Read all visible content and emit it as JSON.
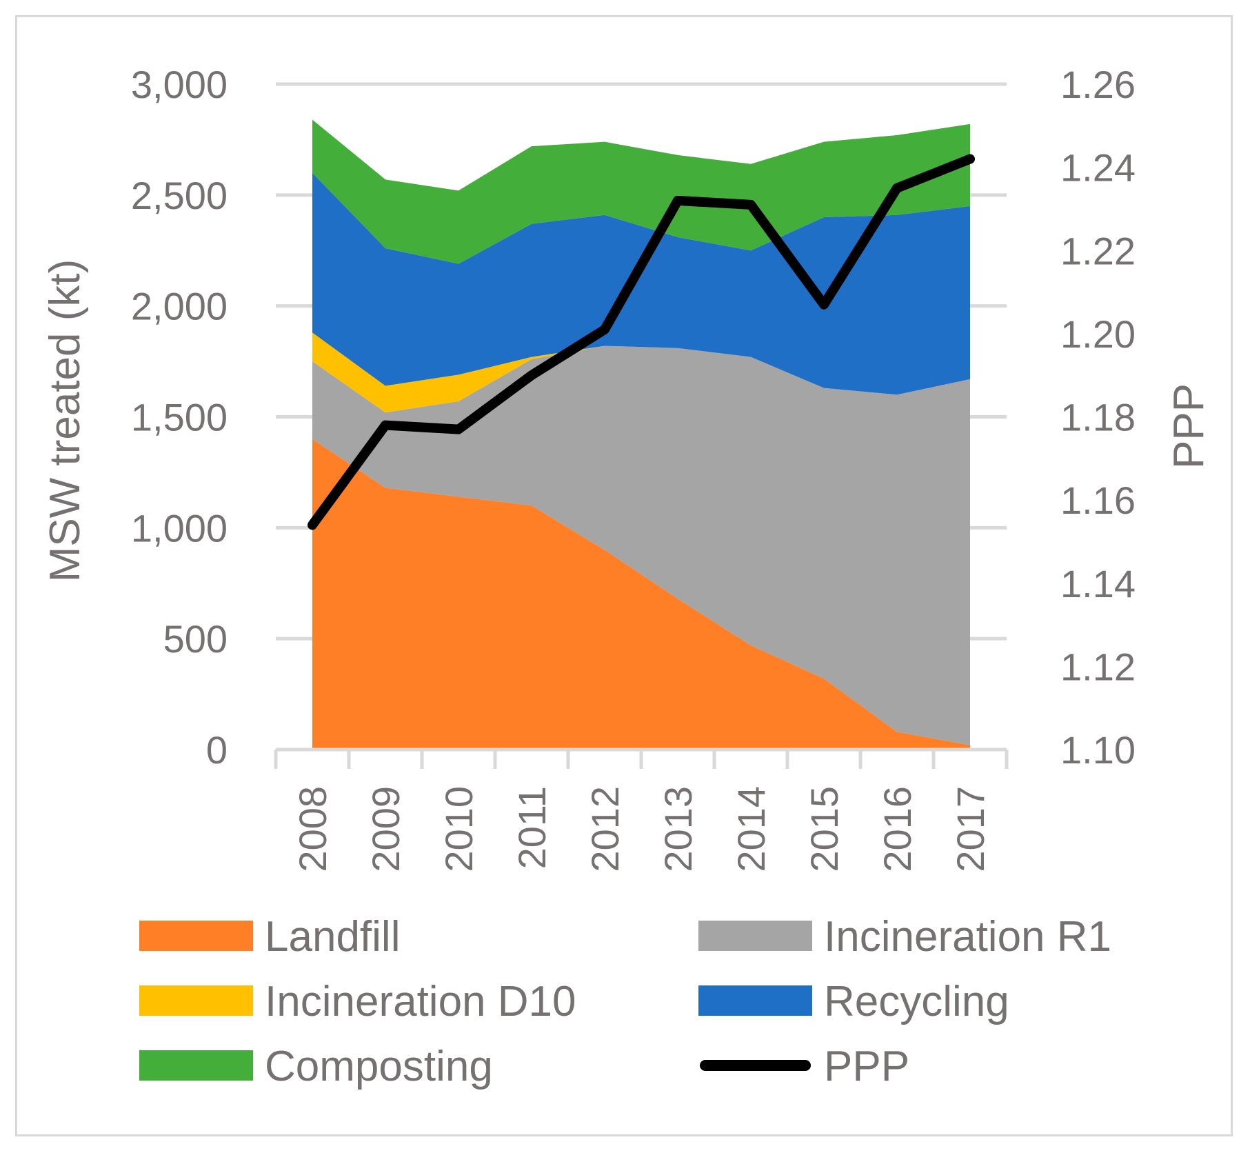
{
  "chart_data": {
    "type": "area",
    "stacked": true,
    "categories": [
      "2008",
      "2009",
      "2010",
      "2011",
      "2012",
      "2013",
      "2014",
      "2015",
      "2016",
      "2017"
    ],
    "series": [
      {
        "name": "Landfill",
        "color": "#FF7F27",
        "values": [
          1400,
          1180,
          1140,
          1100,
          900,
          680,
          470,
          320,
          80,
          20
        ]
      },
      {
        "name": "Incineration R1",
        "color": "#A5A5A5",
        "values": [
          350,
          340,
          430,
          660,
          920,
          1130,
          1300,
          1310,
          1520,
          1650
        ]
      },
      {
        "name": "Incineration D10",
        "color": "#FFC000",
        "values": [
          130,
          120,
          120,
          10,
          0,
          0,
          0,
          0,
          0,
          0
        ]
      },
      {
        "name": "Recycling",
        "color": "#1F6FC6",
        "values": [
          720,
          620,
          500,
          600,
          590,
          500,
          480,
          770,
          810,
          780
        ]
      },
      {
        "name": "Composting",
        "color": "#43AF3A",
        "values": [
          240,
          310,
          330,
          350,
          330,
          370,
          390,
          340,
          360,
          370
        ]
      }
    ],
    "line_series": {
      "name": "PPP",
      "color": "#000000",
      "axis": "right",
      "values": [
        1.154,
        1.178,
        1.177,
        1.19,
        1.201,
        1.232,
        1.231,
        1.207,
        1.235,
        1.242
      ]
    },
    "ylabel": "MSW treated (kt)",
    "ylabel_right": "PPP",
    "ylim": [
      0,
      3000
    ],
    "ylim_right": [
      1.1,
      1.26
    ],
    "yticks": [
      "0",
      "500",
      "1,000",
      "1,500",
      "2,000",
      "2,500",
      "3,000"
    ],
    "yticks_right": [
      "1.10",
      "1.12",
      "1.14",
      "1.16",
      "1.18",
      "1.20",
      "1.22",
      "1.24",
      "1.26"
    ],
    "grid": true,
    "legend_position": "bottom",
    "legend": [
      {
        "label": "Landfill",
        "color": "#FF7F27",
        "kind": "box"
      },
      {
        "label": "Incineration R1",
        "color": "#A5A5A5",
        "kind": "box"
      },
      {
        "label": "Incineration D10",
        "color": "#FFC000",
        "kind": "box"
      },
      {
        "label": "Recycling",
        "color": "#1F6FC6",
        "kind": "box"
      },
      {
        "label": "Composting",
        "color": "#43AF3A",
        "kind": "box"
      },
      {
        "label": "PPP",
        "color": "#000000",
        "kind": "line"
      }
    ]
  },
  "colors": {
    "grid": "#D9D9D9",
    "axis_text": "#767171",
    "frame": "#D9D9D9"
  }
}
